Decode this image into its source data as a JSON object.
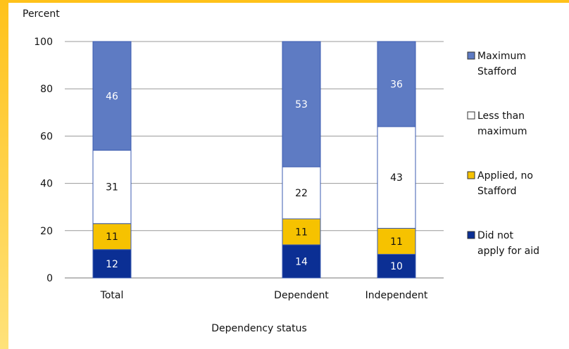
{
  "chart_data": {
    "type": "bar",
    "stacked": true,
    "ylabel": "Percent",
    "xlabel": "Dependency status",
    "ylim": [
      0,
      100
    ],
    "yticks": [
      0,
      20,
      40,
      60,
      80,
      100
    ],
    "grid": true,
    "legend_position": "right",
    "categories": [
      "Total",
      "Dependent",
      "Independent"
    ],
    "series": [
      {
        "name": "Did not apply for aid",
        "legend_lines": [
          "Did not",
          "apply for aid"
        ],
        "values": [
          12,
          14,
          10
        ],
        "color": "#0b2f94",
        "label_color": "#ffffff"
      },
      {
        "name": "Applied, no Stafford",
        "legend_lines": [
          "Applied, no",
          "Stafford"
        ],
        "values": [
          11,
          11,
          11
        ],
        "color": "#f6c200",
        "label_color": "#111111"
      },
      {
        "name": "Less than maximum",
        "legend_lines": [
          "Less than",
          "maximum"
        ],
        "values": [
          31,
          22,
          43
        ],
        "color": "#ffffff",
        "label_color": "#111111"
      },
      {
        "name": "Maximum Stafford",
        "legend_lines": [
          "Maximum",
          "Stafford"
        ],
        "values": [
          46,
          53,
          36
        ],
        "color": "#5e7bc3",
        "label_color": "#ffffff"
      }
    ]
  }
}
